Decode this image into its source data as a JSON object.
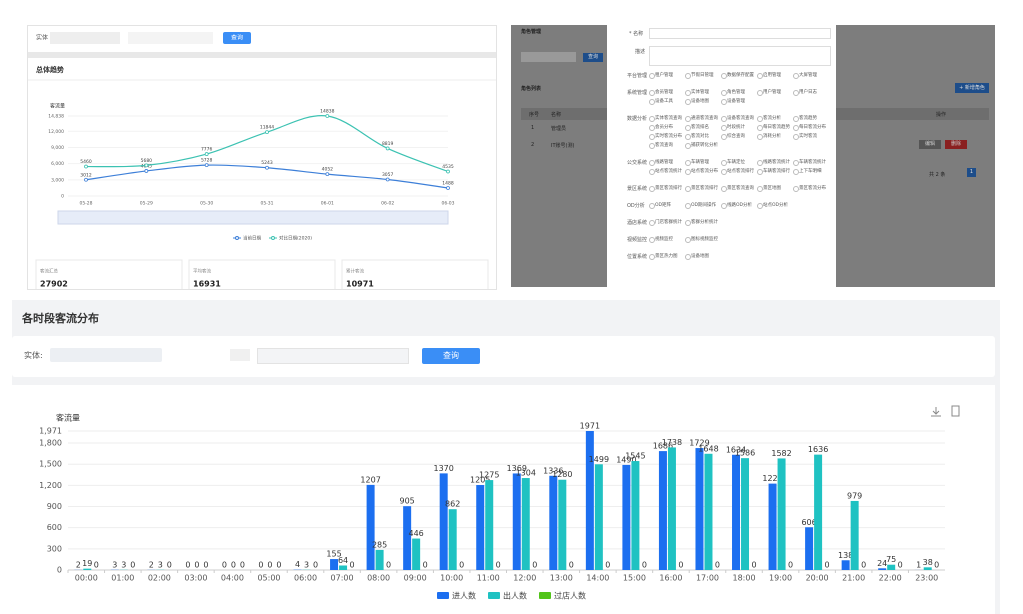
{
  "trend_panel": {
    "filter_label": "实体",
    "query_button": "查询",
    "stats": [
      {
        "label": "客流汇总",
        "value": 27902
      },
      {
        "label": "平均客流",
        "value": 16931
      },
      {
        "label": "累计客流",
        "value": 10971
      }
    ]
  },
  "role_panel": {
    "header": "角色管理",
    "search_button": "查询",
    "list_title": "角色列表",
    "add_button": "+ 新增角色",
    "columns": [
      "序号",
      "名称",
      "操作"
    ],
    "rows": [
      [
        1,
        "管理员"
      ],
      [
        2,
        "IT账号(测)"
      ]
    ],
    "actions": [
      "编辑",
      "删除"
    ],
    "pagination": "共 2 条",
    "page": 1,
    "modal": {
      "name_label": "* 名称",
      "desc_label": "描述",
      "groups": [
        {
          "name": "平台管理",
          "options": [
            "租户管理",
            "节假日管理",
            "数据保存配置",
            "启用管理",
            "大屏管理"
          ]
        },
        {
          "name": "系统管理",
          "options": [
            "会员管理",
            "实体管理",
            "角色管理",
            "用户管理",
            "用户日志",
            "设备工具",
            "设备地图",
            "设备管理"
          ]
        },
        {
          "name": "数据分析",
          "options": [
            "实体客流查询",
            "通道客流查询",
            "设备客流查询",
            "客流分析",
            "客流趋势",
            "会员分布",
            "客流排名",
            "时段统计",
            "每日客流趋势",
            "每日客流分布",
            "实时客流分布",
            "客流对比",
            "综合查询",
            "消耗分析",
            "实时客流",
            "客流查询",
            "捕获转化分析"
          ]
        },
        {
          "name": "公交系统",
          "options": [
            "线路管理",
            "车辆管理",
            "车辆定位",
            "线路客流统计",
            "车辆客流统计",
            "站点客流统计",
            "站点客流分布",
            "站点客流排行",
            "车辆客流排行",
            "上下车明细"
          ]
        },
        {
          "name": "景区系统",
          "options": [
            "景区客流排行",
            "景区客流排行",
            "景区客流查询",
            "景区地图",
            "景区客流分布"
          ]
        },
        {
          "name": "OD分析",
          "options": [
            "OD矩阵",
            "OD期间操作",
            "线路OD分析",
            "站点OD分析"
          ]
        },
        {
          "name": "酒店系统",
          "options": [
            "门店客群统计",
            "客群分析统计"
          ]
        },
        {
          "name": "视频监控",
          "options": [
            "视频监控",
            "图标视频监控"
          ]
        },
        {
          "name": "位置系统",
          "options": [
            "景区热力图",
            "设备地图"
          ]
        }
      ]
    }
  },
  "main_panel": {
    "title": "各时段客流分布",
    "filter_label": "实体:",
    "query_button": "查询"
  },
  "chart_data": [
    {
      "type": "line",
      "title": "总体趋势",
      "y_label": "客流量",
      "categories": [
        "05-28",
        "05-29",
        "05-30",
        "05-31",
        "06-01",
        "06-02",
        "06-03"
      ],
      "series": [
        {
          "name": "当前日期",
          "color": "#3d7fd8",
          "values": [
            3012,
            4645,
            5728,
            5243,
            4052,
            3057,
            1488
          ]
        },
        {
          "name": "对比日期(2020)",
          "color": "#3cc2b2",
          "values": [
            5460,
            5680,
            7776,
            11844,
            14838,
            8819,
            4535
          ]
        }
      ],
      "ylim": [
        0,
        14838
      ],
      "yticks": [
        0,
        {
          "value": 3000,
          "label": "3,000"
        },
        {
          "value": 6000,
          "label": "6,000"
        },
        {
          "value": 9000,
          "label": "9,000"
        },
        {
          "value": 12000,
          "label": "12,000"
        },
        {
          "value": 14838,
          "label": "14,838"
        }
      ],
      "legend": "bottom"
    },
    {
      "type": "bar",
      "y_label": "客流量",
      "categories": [
        "00:00",
        "01:00",
        "02:00",
        "03:00",
        "04:00",
        "05:00",
        "06:00",
        "07:00",
        "08:00",
        "09:00",
        "10:00",
        "11:00",
        "12:00",
        "13:00",
        "14:00",
        "15:00",
        "16:00",
        "17:00",
        "18:00",
        "19:00",
        "20:00",
        "21:00",
        "22:00",
        "23:00"
      ],
      "series": [
        {
          "name": "进人数",
          "color": "#1c6ff0",
          "values": [
            2,
            3,
            2,
            0,
            0,
            0,
            4,
            155,
            1207,
            905,
            1370,
            1205,
            1369,
            1336,
            1971,
            1490,
            1686,
            1729,
            1634,
            1225,
            606,
            138,
            24,
            1
          ]
        },
        {
          "name": "出人数",
          "color": "#1fc2c2",
          "values": [
            19,
            3,
            3,
            0,
            0,
            0,
            3,
            64,
            285,
            446,
            862,
            1275,
            1304,
            1280,
            1499,
            1545,
            1738,
            1648,
            1586,
            1582,
            1636,
            979,
            75,
            38
          ]
        },
        {
          "name": "过店人数",
          "color": "#52c41a",
          "values": [
            0,
            0,
            0,
            0,
            0,
            0,
            0,
            0,
            0,
            0,
            0,
            0,
            0,
            0,
            0,
            0,
            0,
            0,
            0,
            0,
            0,
            0,
            0,
            0
          ]
        }
      ],
      "ylim": [
        0,
        1971
      ],
      "yticks": [
        0,
        300,
        600,
        900,
        {
          "value": 1200,
          "label": "1,200"
        },
        {
          "value": 1500,
          "label": "1,500"
        },
        {
          "value": 1800,
          "label": "1,800"
        },
        {
          "value": 1971,
          "label": "1,971"
        }
      ],
      "grid": true,
      "legend": "bottom"
    }
  ]
}
